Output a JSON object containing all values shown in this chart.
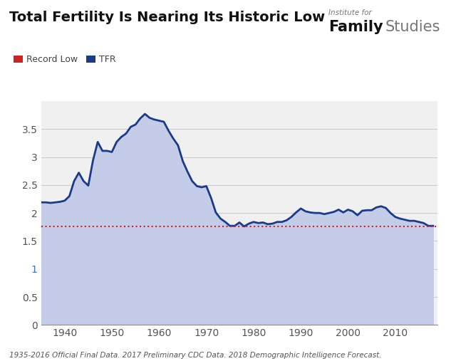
{
  "title": "Total Fertility Is Nearing Its Historic Low",
  "footnote": "1935-2016 Official Final Data. 2017 Preliminary CDC Data. 2018 Demographic Intelligence Forecast.",
  "record_low": 1.765,
  "line_color": "#1a3a8a",
  "fill_color": "#c5cce8",
  "record_low_color": "#cc2222",
  "background_color": "#f0f0f0",
  "ylim": [
    0,
    4.0
  ],
  "yticks": [
    0,
    0.5,
    1,
    1.5,
    2,
    2.5,
    3,
    3.5
  ],
  "xlim": [
    1935,
    2019
  ],
  "xticks": [
    1940,
    1950,
    1960,
    1970,
    1980,
    1990,
    2000,
    2010
  ],
  "years": [
    1935,
    1936,
    1937,
    1938,
    1939,
    1940,
    1941,
    1942,
    1943,
    1944,
    1945,
    1946,
    1947,
    1948,
    1949,
    1950,
    1951,
    1952,
    1953,
    1954,
    1955,
    1956,
    1957,
    1958,
    1959,
    1960,
    1961,
    1962,
    1963,
    1964,
    1965,
    1966,
    1967,
    1968,
    1969,
    1970,
    1971,
    1972,
    1973,
    1974,
    1975,
    1976,
    1977,
    1978,
    1979,
    1980,
    1981,
    1982,
    1983,
    1984,
    1985,
    1986,
    1987,
    1988,
    1989,
    1990,
    1991,
    1992,
    1993,
    1994,
    1995,
    1996,
    1997,
    1998,
    1999,
    2000,
    2001,
    2002,
    2003,
    2004,
    2005,
    2006,
    2007,
    2008,
    2009,
    2010,
    2011,
    2012,
    2013,
    2014,
    2015,
    2016,
    2017,
    2018
  ],
  "tfr": [
    2.19,
    2.19,
    2.18,
    2.19,
    2.2,
    2.22,
    2.3,
    2.57,
    2.72,
    2.57,
    2.49,
    2.94,
    3.27,
    3.11,
    3.11,
    3.09,
    3.27,
    3.36,
    3.42,
    3.54,
    3.58,
    3.69,
    3.77,
    3.7,
    3.67,
    3.65,
    3.63,
    3.47,
    3.33,
    3.21,
    2.93,
    2.74,
    2.57,
    2.48,
    2.46,
    2.48,
    2.27,
    2.01,
    1.9,
    1.84,
    1.77,
    1.77,
    1.83,
    1.76,
    1.81,
    1.84,
    1.82,
    1.83,
    1.8,
    1.81,
    1.84,
    1.84,
    1.87,
    1.93,
    2.01,
    2.08,
    2.03,
    2.01,
    2.0,
    2.0,
    1.98,
    2.0,
    2.02,
    2.06,
    2.01,
    2.06,
    2.03,
    1.96,
    2.04,
    2.05,
    2.05,
    2.1,
    2.12,
    2.09,
    2.0,
    1.93,
    1.9,
    1.88,
    1.86,
    1.86,
    1.84,
    1.82,
    1.77,
    1.77
  ],
  "logo_italic": "Institute for",
  "logo_bold": "Family",
  "logo_regular": "Studies"
}
